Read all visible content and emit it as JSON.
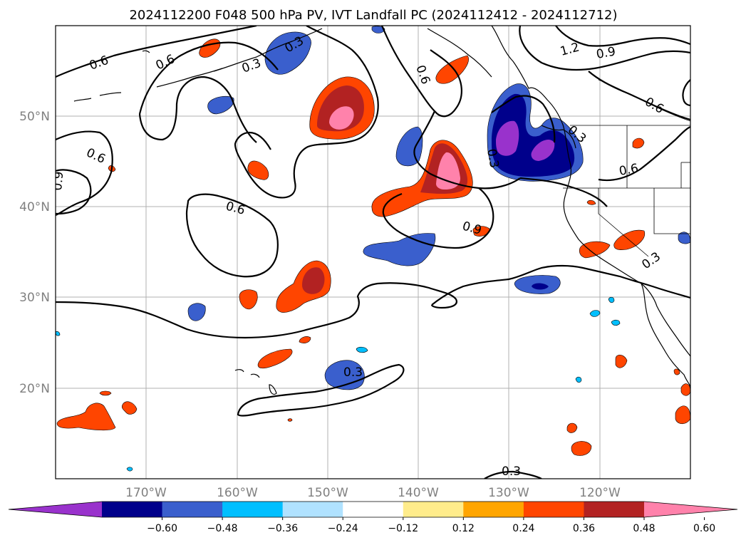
{
  "title": "2024112200 F048 500 hPa PV, IVT Landfall PC (2024112412 - 2024112712)",
  "lon_ticks": [
    "170°W",
    "160°W",
    "150°W",
    "140°W",
    "130°W",
    "120°W"
  ],
  "lat_ticks": [
    "50°N",
    "40°N",
    "30°N",
    "20°N"
  ],
  "colorbar": {
    "ticks": [
      "−0.60",
      "−0.48",
      "−0.36",
      "−0.24",
      "−0.12",
      "0.12",
      "0.24",
      "0.36",
      "0.48",
      "0.60"
    ],
    "colors": [
      "#9932cc",
      "#00008b",
      "#3a5fcd",
      "#00bfff",
      "#b0e2ff",
      "#ffffff",
      "#ffec8b",
      "#ffa500",
      "#ff4500",
      "#b22222",
      "#ff82ab"
    ]
  },
  "contour_labels": {
    "c1": "0.6",
    "c2": "0.6",
    "c3": "0.3",
    "c4": "0.6",
    "c5": "1.2",
    "c6": "0.9",
    "c7": "0.6",
    "c8": "0.6",
    "c9": "0.9",
    "c10": "0.6",
    "c11": "0.6",
    "c12": "0.9",
    "c13": "0.3",
    "c14": "0.3",
    "c15": "0.3",
    "c16": "0.3",
    "c17": "0.3",
    "c18": "0.3"
  },
  "chart_data": {
    "type": "map",
    "projection": "lat-lon",
    "extent": {
      "lon": [
        -180,
        -110
      ],
      "lat": [
        10,
        60
      ]
    },
    "grid": true,
    "fill_variable": "IVT Landfall PC",
    "contour_variable": "500 hPa PV",
    "contour_levels": [
      0.3,
      0.6,
      0.9,
      1.2
    ],
    "colorbar_levels": [
      -0.6,
      -0.48,
      -0.36,
      -0.24,
      -0.12,
      0.12,
      0.24,
      0.36,
      0.48,
      0.6
    ]
  }
}
